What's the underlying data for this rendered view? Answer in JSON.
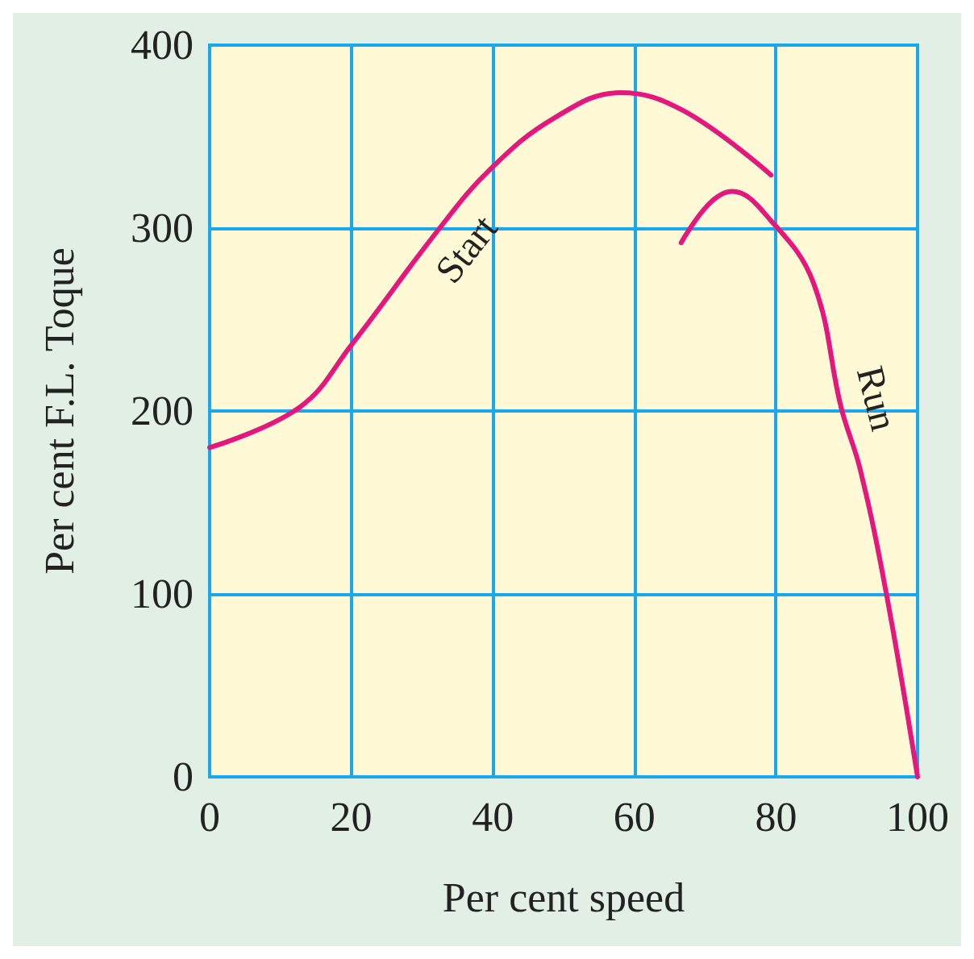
{
  "chart_data": {
    "type": "line",
    "xlabel": "Per cent speed",
    "ylabel": "Per cent F.L. Toque",
    "xlim": [
      0,
      100
    ],
    "xticks": [
      0,
      20,
      40,
      60,
      80,
      100
    ],
    "ylim": [
      0,
      400
    ],
    "yticks": [
      0,
      100,
      200,
      300,
      400
    ],
    "grid": true,
    "series": [
      {
        "name": "Start",
        "color": "#e5177e",
        "x": [
          0,
          12.7,
          20,
          32.5,
          39.6,
          48.6,
          58,
          67,
          79.3
        ],
        "values": [
          180,
          202,
          236,
          300,
          332,
          360,
          374,
          364,
          329
        ]
      },
      {
        "name": "Run",
        "color": "#e5177e",
        "x": [
          66.6,
          70.5,
          73.8,
          79.3,
          85.3,
          89.2,
          91.9,
          95.6,
          100
        ],
        "values": [
          292,
          313,
          320,
          304,
          270,
          202,
          168,
          100,
          0
        ]
      }
    ]
  }
}
